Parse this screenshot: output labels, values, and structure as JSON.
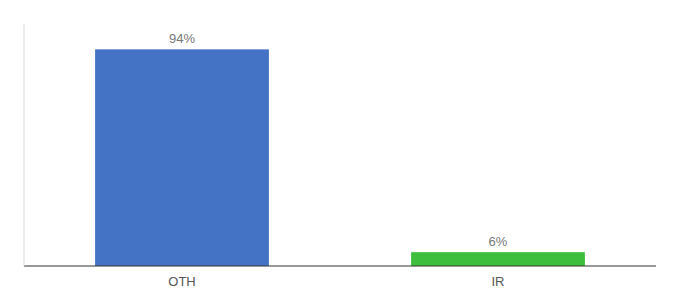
{
  "chart_data": {
    "type": "bar",
    "categories": [
      "OTH",
      "IR"
    ],
    "values": [
      94,
      6
    ],
    "value_labels": [
      "94%",
      "6%"
    ],
    "data_labels": true,
    "colors": [
      "#4472c4",
      "#3dbf3d"
    ],
    "ylim": [
      0,
      105
    ],
    "tick_labels": "x",
    "grid": false
  }
}
